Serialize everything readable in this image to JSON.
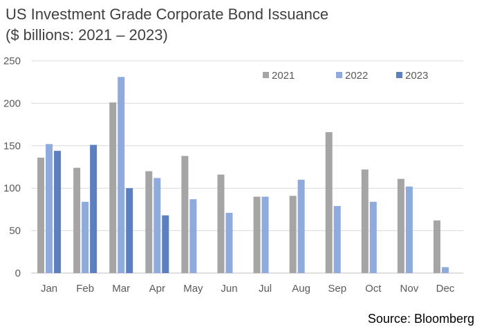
{
  "chart_data": {
    "type": "bar",
    "title": "US Investment Grade Corporate Bond Issuance",
    "subtitle": "($ billions: 2021 – 2023)",
    "source": "Source: Bloomberg",
    "categories": [
      "Jan",
      "Feb",
      "Mar",
      "Apr",
      "May",
      "Jun",
      "Jul",
      "Aug",
      "Sep",
      "Oct",
      "Nov",
      "Dec"
    ],
    "series": [
      {
        "name": "2021",
        "color": "#a5a5a5",
        "values": [
          136,
          124,
          201,
          120,
          138,
          116,
          90,
          91,
          166,
          122,
          111,
          62
        ]
      },
      {
        "name": "2022",
        "color": "#8faadc",
        "values": [
          152,
          84,
          231,
          112,
          87,
          71,
          90,
          110,
          79,
          84,
          102,
          7
        ]
      },
      {
        "name": "2023",
        "color": "#5b7fbf",
        "values": [
          144,
          151,
          100,
          68,
          null,
          null,
          null,
          null,
          null,
          null,
          null,
          null
        ]
      }
    ],
    "ylim": [
      0,
      250
    ],
    "yticks": [
      0,
      50,
      100,
      150,
      200,
      250
    ],
    "grid": true,
    "legend": "top-right"
  }
}
